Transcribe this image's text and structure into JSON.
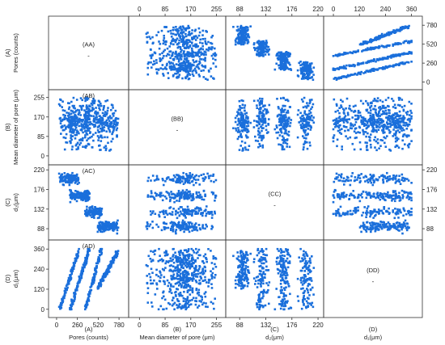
{
  "chart_data": {
    "type": "scatter",
    "layout": "scatter-matrix 4x4",
    "marker_color": "#1a6fdb",
    "variables": [
      {
        "id": "A",
        "name": "Pores (counts)",
        "range": [
          -60,
          860
        ],
        "ticks": [
          0,
          260,
          520,
          780
        ],
        "top_ticks": [],
        "right_ticks": [
          0,
          260,
          520,
          780
        ]
      },
      {
        "id": "B",
        "name": "Mean diameter of pore (μm)",
        "range": [
          -25,
          275
        ],
        "ticks": [
          0,
          85,
          170,
          255
        ],
        "top_ticks": [
          0,
          85,
          170,
          255
        ],
        "right_ticks": []
      },
      {
        "id": "C",
        "name": "d₂(μm)",
        "range": [
          70,
          224
        ],
        "ticks": [
          88,
          132,
          176,
          220
        ],
        "top_ticks": [
          88,
          132,
          176,
          220
        ],
        "right_ticks": [
          88,
          132,
          176,
          220
        ]
      },
      {
        "id": "D",
        "name": "d₁(μm)",
        "range": [
          -30,
          395
        ],
        "ticks": [
          0,
          120,
          240,
          360
        ],
        "top_ticks": [
          0,
          120,
          240,
          360
        ],
        "right_ticks": []
      }
    ],
    "left_axis_labels": [
      "(A)\nPores (counts)",
      "(B)\nMean diameter of pore (μm)",
      "(C)\nd₂(μm)",
      "(D)\nd₁(μm)"
    ],
    "bottom_axis_labels": [
      "(A)\nPores (counts)",
      "(B)\nMean diameter of pore (μm)",
      "(C)\nd₂(μm)",
      "(D)\nd₁(μm)"
    ],
    "left_tick_labels": [
      [],
      [
        0,
        85,
        170,
        255
      ],
      [
        88,
        132,
        176,
        220
      ],
      [
        0,
        120,
        240,
        360
      ]
    ],
    "bottom_tick_labels": [
      [
        0,
        260,
        520,
        780
      ],
      [
        0,
        85,
        170,
        255
      ],
      [
        88,
        132,
        176,
        220
      ],
      []
    ],
    "panel_labels": [
      [
        "(AA)",
        "",
        "",
        ""
      ],
      [
        "(AB)",
        "(BB)",
        "",
        ""
      ],
      [
        "(AC)",
        "",
        "(CC)",
        ""
      ],
      [
        "(AD)",
        "",
        "",
        "(DD)"
      ]
    ],
    "diagonal_marker": "-",
    "data_summary": {
      "pores_count_range": [
        0,
        780
      ],
      "mean_diameter_range_um": [
        0,
        255
      ],
      "d2_levels_um": [
        92,
        125,
        162,
        200
      ],
      "d1_range_um": [
        0,
        360
      ]
    }
  }
}
